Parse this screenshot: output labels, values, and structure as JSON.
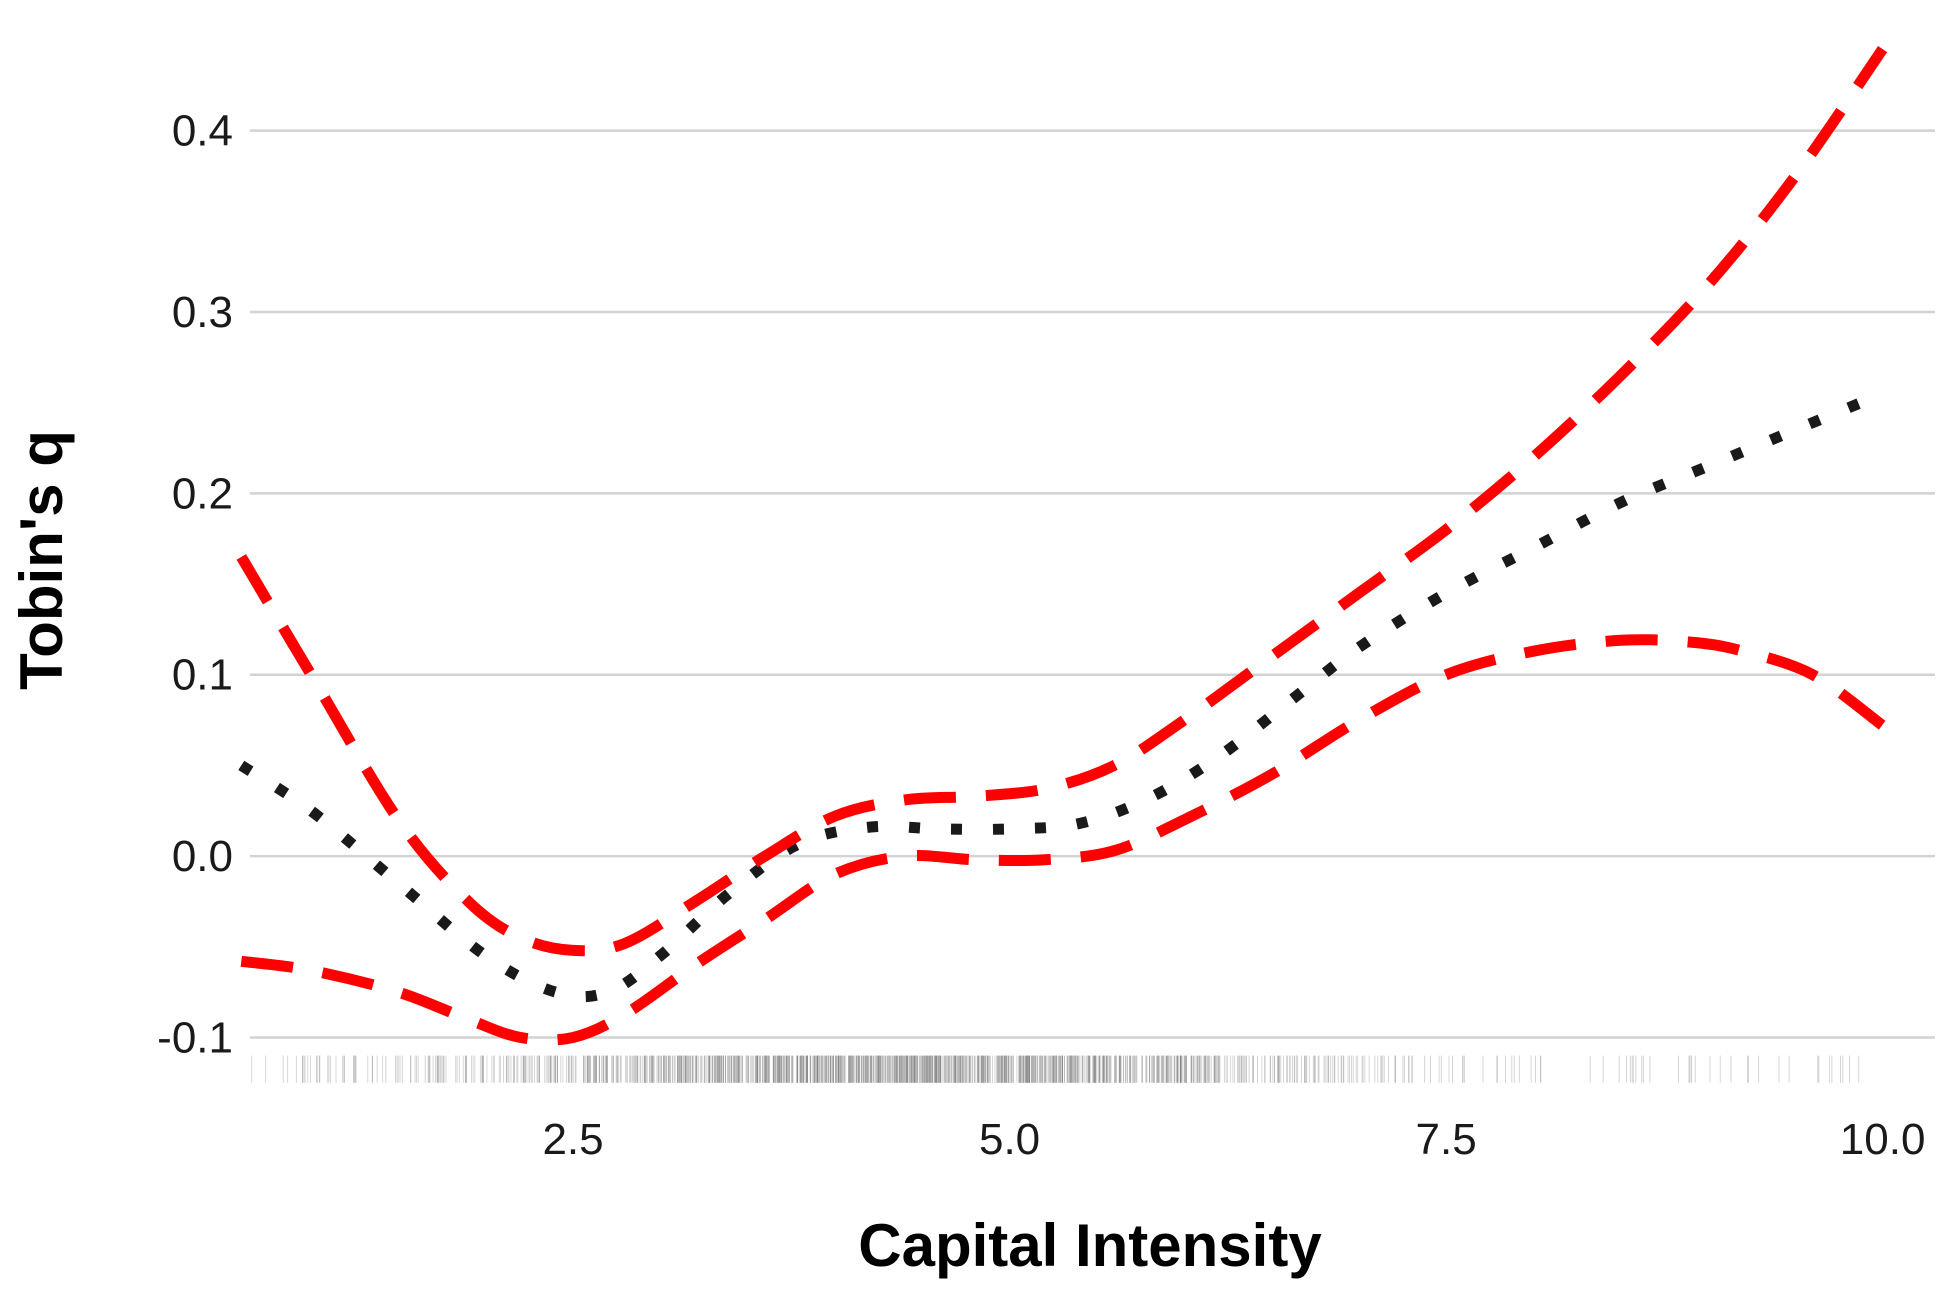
{
  "chart_data": {
    "type": "line",
    "title": "",
    "xlabel": "Capital Intensity",
    "ylabel": "Tobin's q",
    "xlim": [
      0.65,
      10.3
    ],
    "ylim": [
      -0.14,
      0.45
    ],
    "x_ticks": [
      2.5,
      5.0,
      7.5,
      10.0
    ],
    "x_tick_labels": [
      "2.5",
      "5.0",
      "7.5",
      "10.0"
    ],
    "y_ticks": [
      -0.1,
      0.0,
      0.1,
      0.2,
      0.3,
      0.4
    ],
    "y_tick_labels": [
      "-0.1",
      "0.0",
      "0.1",
      "0.2",
      "0.3",
      "0.4"
    ],
    "grid": "horizontal",
    "legend": "none",
    "series": [
      {
        "role": "estimate",
        "style": "dotted",
        "color": "#1a1a1a",
        "points": [
          [
            0.6,
            0.05
          ],
          [
            1.0,
            0.025
          ],
          [
            1.5,
            -0.015
          ],
          [
            2.0,
            -0.055
          ],
          [
            2.4,
            -0.075
          ],
          [
            2.7,
            -0.075
          ],
          [
            3.0,
            -0.055
          ],
          [
            3.4,
            -0.02
          ],
          [
            3.8,
            0.007
          ],
          [
            4.2,
            0.016
          ],
          [
            4.6,
            0.015
          ],
          [
            5.0,
            0.015
          ],
          [
            5.4,
            0.018
          ],
          [
            5.8,
            0.032
          ],
          [
            6.2,
            0.055
          ],
          [
            6.6,
            0.085
          ],
          [
            7.0,
            0.115
          ],
          [
            7.5,
            0.145
          ],
          [
            8.0,
            0.17
          ],
          [
            8.5,
            0.195
          ],
          [
            9.0,
            0.215
          ],
          [
            9.5,
            0.235
          ],
          [
            10.0,
            0.255
          ]
        ]
      },
      {
        "role": "upper-bound",
        "style": "dashed",
        "color": "#ff0000",
        "points": [
          [
            0.6,
            0.165
          ],
          [
            1.0,
            0.1
          ],
          [
            1.5,
            0.02
          ],
          [
            1.9,
            -0.025
          ],
          [
            2.2,
            -0.045
          ],
          [
            2.5,
            -0.052
          ],
          [
            2.8,
            -0.048
          ],
          [
            3.2,
            -0.025
          ],
          [
            3.6,
            0.0
          ],
          [
            4.0,
            0.022
          ],
          [
            4.4,
            0.031
          ],
          [
            4.8,
            0.033
          ],
          [
            5.2,
            0.037
          ],
          [
            5.6,
            0.05
          ],
          [
            6.0,
            0.075
          ],
          [
            6.5,
            0.11
          ],
          [
            7.0,
            0.145
          ],
          [
            7.5,
            0.18
          ],
          [
            8.0,
            0.22
          ],
          [
            8.5,
            0.265
          ],
          [
            9.0,
            0.315
          ],
          [
            9.5,
            0.375
          ],
          [
            10.0,
            0.445
          ]
        ]
      },
      {
        "role": "lower-bound",
        "style": "dashed",
        "color": "#ff0000",
        "points": [
          [
            0.6,
            -0.058
          ],
          [
            1.0,
            -0.063
          ],
          [
            1.5,
            -0.075
          ],
          [
            1.9,
            -0.09
          ],
          [
            2.2,
            -0.1
          ],
          [
            2.5,
            -0.1
          ],
          [
            2.8,
            -0.087
          ],
          [
            3.2,
            -0.06
          ],
          [
            3.6,
            -0.035
          ],
          [
            4.0,
            -0.01
          ],
          [
            4.4,
            0.0
          ],
          [
            4.8,
            -0.002
          ],
          [
            5.2,
            -0.002
          ],
          [
            5.6,
            0.003
          ],
          [
            6.0,
            0.02
          ],
          [
            6.5,
            0.045
          ],
          [
            7.0,
            0.075
          ],
          [
            7.5,
            0.1
          ],
          [
            8.0,
            0.113
          ],
          [
            8.5,
            0.119
          ],
          [
            8.9,
            0.118
          ],
          [
            9.2,
            0.113
          ],
          [
            9.6,
            0.1
          ],
          [
            10.0,
            0.072
          ]
        ]
      }
    ]
  }
}
